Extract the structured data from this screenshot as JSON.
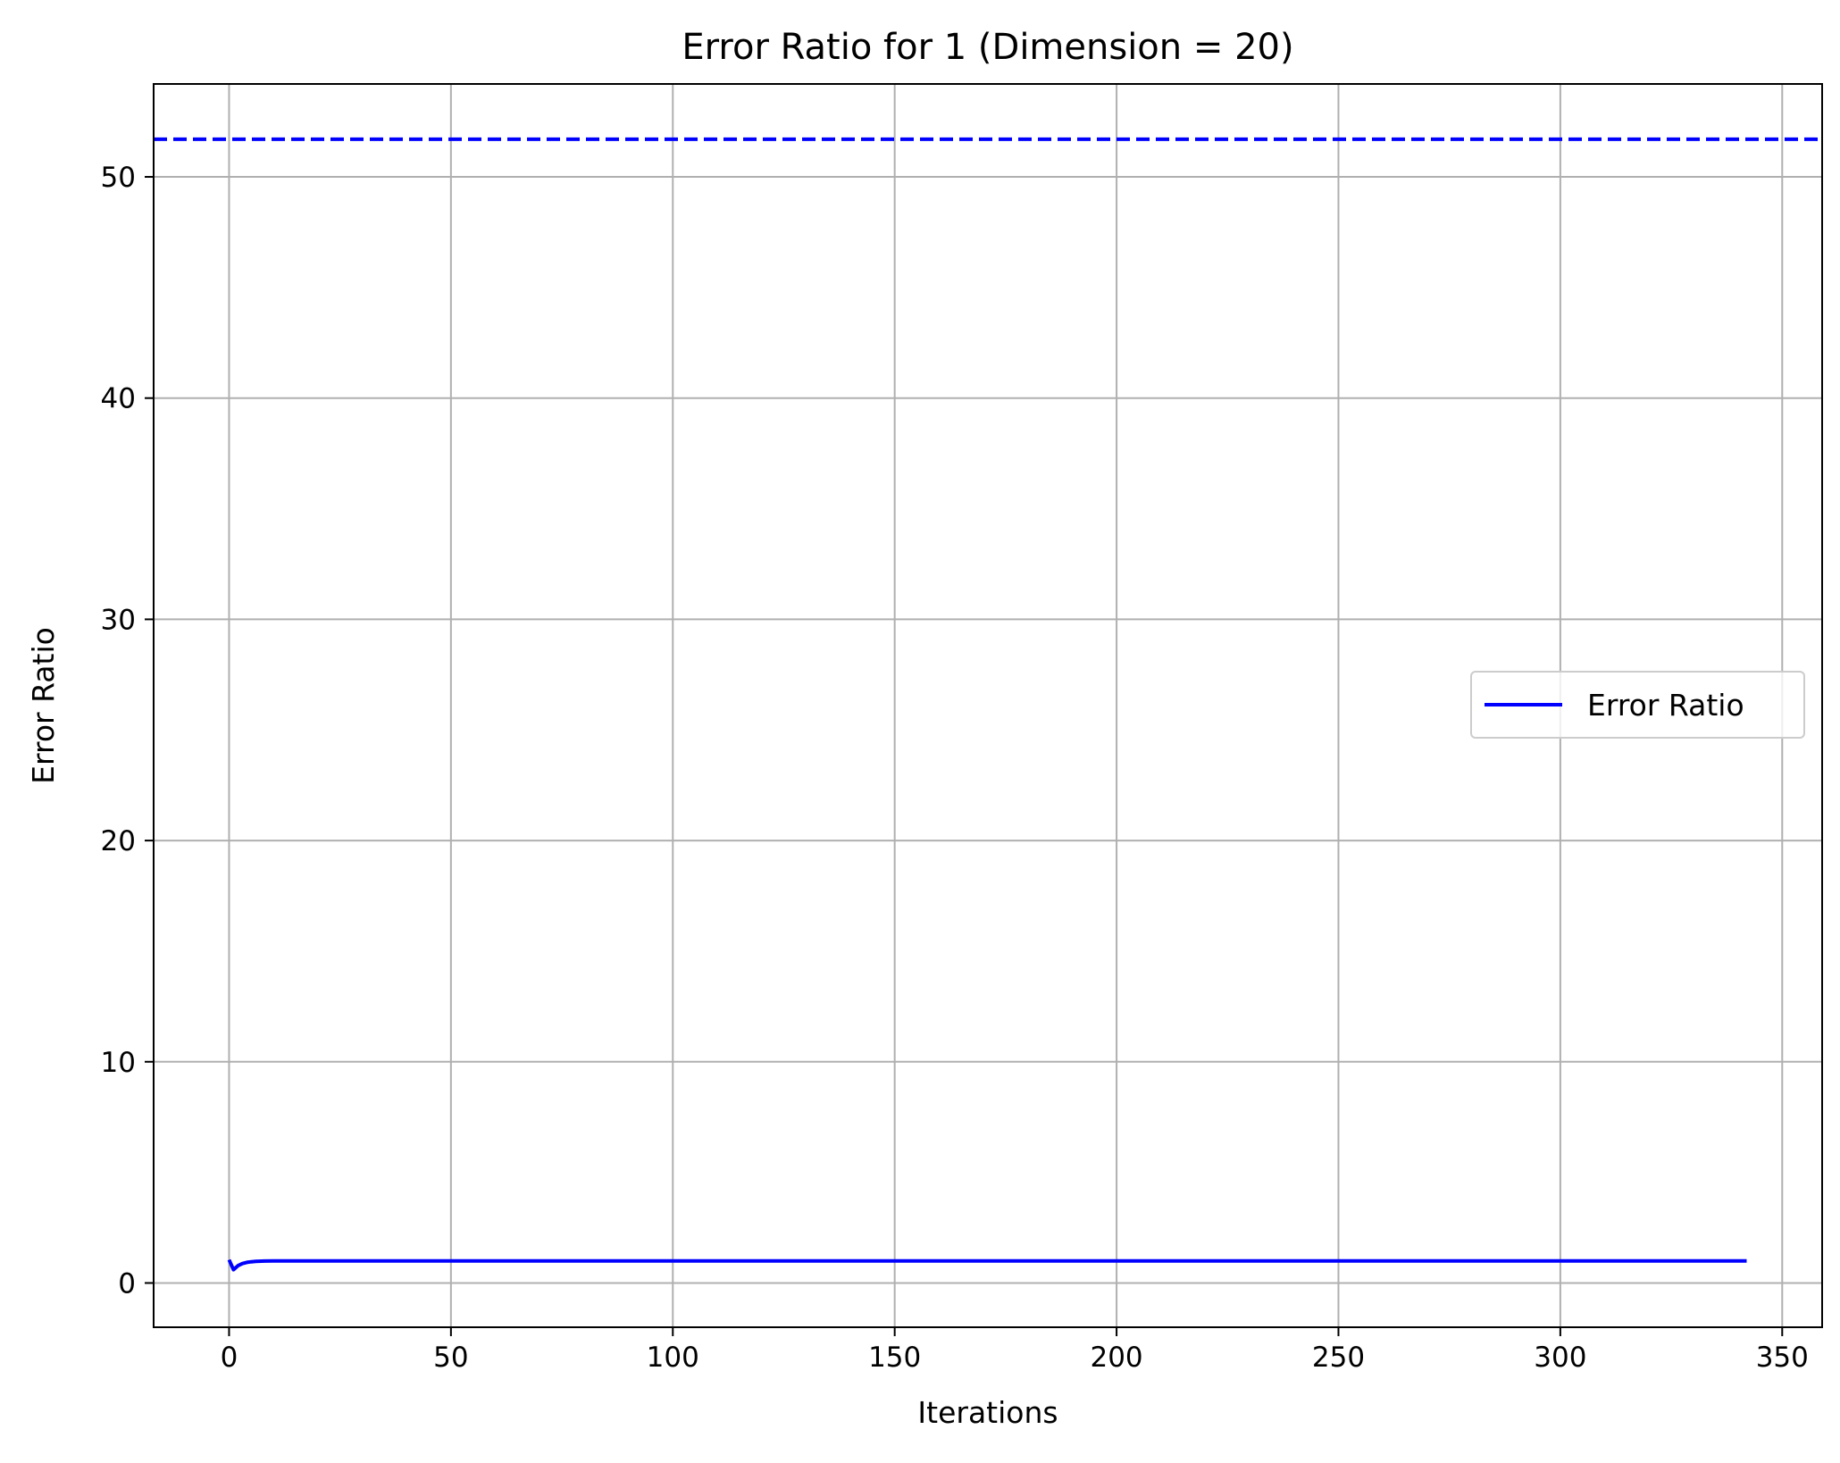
{
  "chart_data": {
    "type": "line",
    "title": "Error Ratio for 1 (Dimension = 20)",
    "xlabel": "Iterations",
    "ylabel": "Error Ratio",
    "xlim": [
      -17,
      359
    ],
    "ylim": [
      -2,
      54.2
    ],
    "xticks": [
      0,
      50,
      100,
      150,
      200,
      250,
      300,
      350
    ],
    "yticks": [
      0,
      10,
      20,
      30,
      40,
      50
    ],
    "grid": true,
    "legend_position": "center-right",
    "series": [
      {
        "name": "Error Ratio",
        "color": "#0000ff",
        "style": "solid",
        "x": [
          0,
          1,
          2,
          3,
          4,
          5,
          6,
          8,
          10,
          15,
          20,
          30,
          50,
          100,
          150,
          200,
          250,
          300,
          342
        ],
        "y": [
          1.05,
          0.6,
          0.78,
          0.88,
          0.93,
          0.96,
          0.98,
          0.99,
          1.0,
          1.0,
          1.0,
          1.0,
          1.0,
          1.0,
          1.0,
          1.0,
          1.0,
          1.0,
          1.0
        ]
      }
    ],
    "reference_lines": [
      {
        "orientation": "horizontal",
        "y": 51.7,
        "color": "#0000ff",
        "style": "dashed"
      }
    ]
  }
}
